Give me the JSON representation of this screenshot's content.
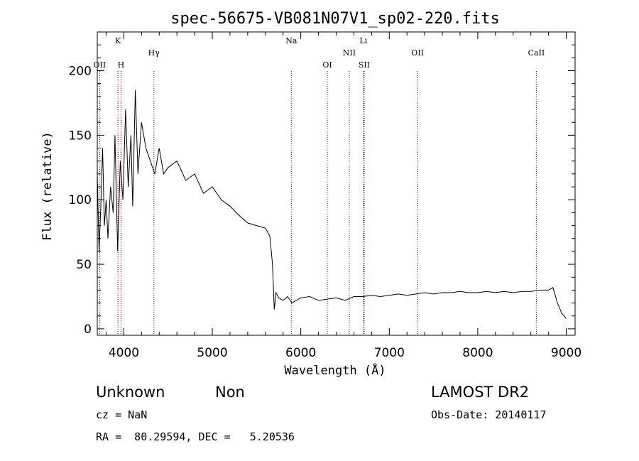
{
  "chart_data": {
    "type": "line",
    "title": "spec-56675-VB081N07V1_sp02-220.fits",
    "xlabel": "Wavelength (Å)",
    "ylabel": "Flux (relative)",
    "xlim": [
      3700,
      9100
    ],
    "ylim": [
      -5,
      230
    ],
    "xticks": [
      4000,
      5000,
      6000,
      7000,
      8000,
      9000
    ],
    "yticks": [
      0,
      50,
      100,
      150,
      200
    ],
    "grid": false,
    "line_color": "#000000",
    "marker_color": "#8b0000",
    "series": [
      {
        "x": [
          3700,
          3720,
          3740,
          3760,
          3780,
          3800,
          3820,
          3850,
          3880,
          3900,
          3930,
          3960,
          3990,
          4020,
          4050,
          4080,
          4100,
          4130,
          4160,
          4200,
          4250,
          4300,
          4350,
          4400,
          4450,
          4500,
          4600,
          4700,
          4800,
          4900,
          5000,
          5100,
          5200,
          5300,
          5400,
          5500,
          5600,
          5650,
          5680,
          5700,
          5720,
          5750,
          5800,
          5850,
          5900,
          5950,
          6000,
          6100,
          6200,
          6300,
          6400,
          6500,
          6600,
          6700,
          6800,
          6900,
          7000,
          7100,
          7200,
          7300,
          7400,
          7500,
          7600,
          7700,
          7800,
          7900,
          8000,
          8100,
          8200,
          8300,
          8400,
          8500,
          8600,
          8700,
          8800,
          8850,
          8900,
          8950,
          9000
        ],
        "y": [
          120,
          60,
          95,
          140,
          80,
          100,
          70,
          110,
          90,
          150,
          60,
          130,
          100,
          170,
          110,
          150,
          95,
          185,
          120,
          160,
          140,
          130,
          120,
          140,
          120,
          125,
          130,
          115,
          120,
          105,
          110,
          100,
          95,
          88,
          82,
          80,
          78,
          72,
          50,
          15,
          28,
          24,
          22,
          25,
          20,
          22,
          24,
          25,
          22,
          23,
          24,
          22,
          25,
          25,
          26,
          25,
          26,
          27,
          26,
          27,
          28,
          27,
          28,
          28,
          29,
          28,
          28,
          29,
          28,
          29,
          28,
          29,
          29,
          30,
          30,
          32,
          20,
          12,
          8
        ]
      }
    ],
    "spectral_lines": [
      {
        "label": "OII",
        "x": 3727,
        "row": "low"
      },
      {
        "label": "K",
        "x": 3934,
        "row": "high"
      },
      {
        "label": "H",
        "x": 3968,
        "row": "low"
      },
      {
        "label": "Hγ",
        "x": 4340,
        "row": "mid"
      },
      {
        "label": "Na",
        "x": 5893,
        "row": "high"
      },
      {
        "label": "OI",
        "x": 6300,
        "row": "low"
      },
      {
        "label": "NII",
        "x": 6548,
        "row": "mid"
      },
      {
        "label": "Li",
        "x": 6708,
        "row": "high"
      },
      {
        "label": "SII",
        "x": 6717,
        "row": "low"
      },
      {
        "label": "OII",
        "x": 7320,
        "row": "mid"
      },
      {
        "label": "CaII",
        "x": 8662,
        "row": "mid"
      }
    ]
  },
  "info": {
    "class": "Unknown",
    "subclass": "Non",
    "cz": "cz = NaN",
    "radec": "RA =  80.29594, DEC =   5.20536",
    "survey": "LAMOST DR2",
    "obsdate": "Obs-Date: 20140117"
  }
}
